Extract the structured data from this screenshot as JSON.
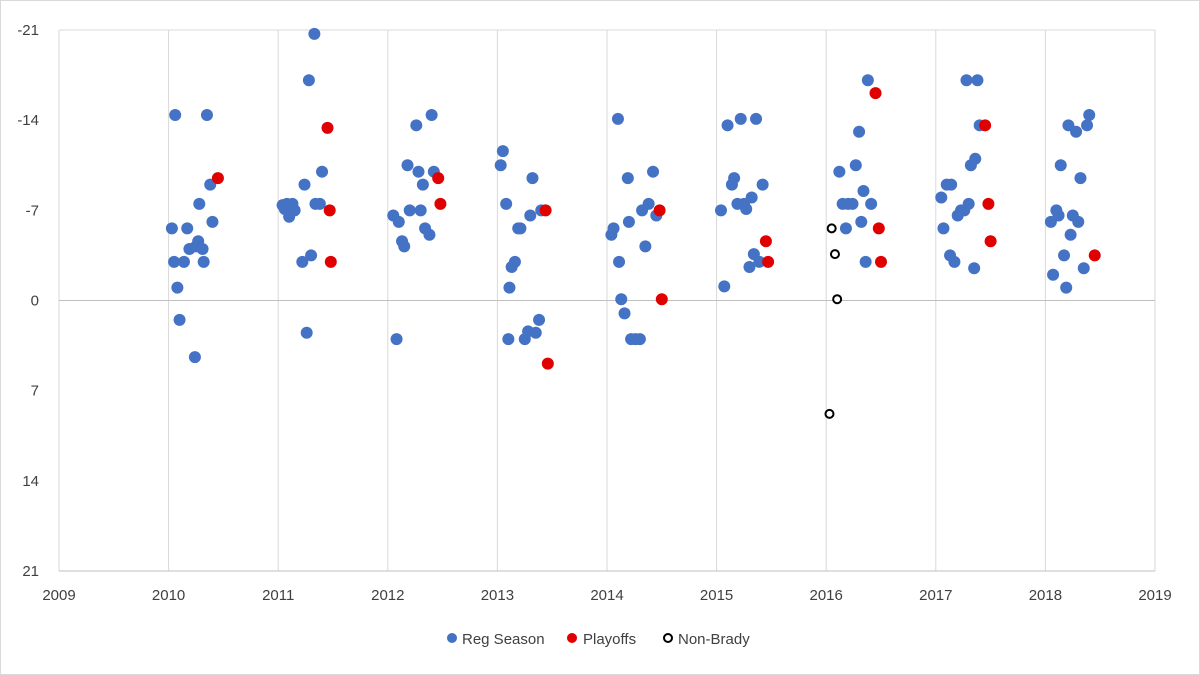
{
  "chart_data": {
    "type": "scatter",
    "title": "",
    "xlabel": "",
    "ylabel": "",
    "xlim": [
      2009,
      2019
    ],
    "ylim": [
      -21,
      21
    ],
    "y_inverted": true,
    "x_ticks": [
      2009,
      2010,
      2011,
      2012,
      2013,
      2014,
      2015,
      2016,
      2017,
      2018,
      2019
    ],
    "y_ticks": [
      -21,
      -14,
      -7,
      0,
      7,
      14,
      21
    ],
    "grid": "vertical lines at x ticks, horizontal line at y=0",
    "legend_position": "bottom",
    "series": [
      {
        "name": "Reg Season",
        "color": "#4472C4",
        "marker": "filled-circle",
        "points": [
          [
            2010.03,
            -5.6
          ],
          [
            2010.05,
            -3
          ],
          [
            2010.06,
            -14.4
          ],
          [
            2010.08,
            -1
          ],
          [
            2010.1,
            1.5
          ],
          [
            2010.14,
            -3
          ],
          [
            2010.17,
            -5.6
          ],
          [
            2010.19,
            -4
          ],
          [
            2010.24,
            4.4
          ],
          [
            2010.25,
            -4.2
          ],
          [
            2010.27,
            -4.6
          ],
          [
            2010.28,
            -7.5
          ],
          [
            2010.31,
            -4
          ],
          [
            2010.32,
            -3
          ],
          [
            2010.35,
            -14.4
          ],
          [
            2010.38,
            -9
          ],
          [
            2010.4,
            -6.1
          ],
          [
            2011.04,
            -7.4
          ],
          [
            2011.06,
            -7.1
          ],
          [
            2011.08,
            -7.5
          ],
          [
            2011.1,
            -6.5
          ],
          [
            2011.12,
            -7.3
          ],
          [
            2011.13,
            -7.5
          ],
          [
            2011.15,
            -7
          ],
          [
            2011.22,
            -3
          ],
          [
            2011.24,
            -9
          ],
          [
            2011.26,
            2.5
          ],
          [
            2011.28,
            -17.1
          ],
          [
            2011.3,
            -3.5
          ],
          [
            2011.33,
            -20.7
          ],
          [
            2011.34,
            -7.5
          ],
          [
            2011.38,
            -7.5
          ],
          [
            2011.4,
            -10
          ],
          [
            2012.05,
            -6.6
          ],
          [
            2012.08,
            3
          ],
          [
            2012.1,
            -6.1
          ],
          [
            2012.13,
            -4.6
          ],
          [
            2012.15,
            -4.2
          ],
          [
            2012.18,
            -10.5
          ],
          [
            2012.2,
            -7
          ],
          [
            2012.26,
            -13.6
          ],
          [
            2012.28,
            -10
          ],
          [
            2012.3,
            -7
          ],
          [
            2012.32,
            -9
          ],
          [
            2012.34,
            -5.6
          ],
          [
            2012.38,
            -5.1
          ],
          [
            2012.4,
            -14.4
          ],
          [
            2012.42,
            -10
          ],
          [
            2013.03,
            -10.5
          ],
          [
            2013.05,
            -11.6
          ],
          [
            2013.08,
            -7.5
          ],
          [
            2013.1,
            3
          ],
          [
            2013.11,
            -1
          ],
          [
            2013.13,
            -2.6
          ],
          [
            2013.16,
            -3
          ],
          [
            2013.19,
            -5.6
          ],
          [
            2013.21,
            -5.6
          ],
          [
            2013.25,
            3
          ],
          [
            2013.28,
            2.4
          ],
          [
            2013.3,
            -6.6
          ],
          [
            2013.32,
            -9.5
          ],
          [
            2013.35,
            2.5
          ],
          [
            2013.38,
            1.5
          ],
          [
            2013.4,
            -7
          ],
          [
            2014.04,
            -5.1
          ],
          [
            2014.06,
            -5.6
          ],
          [
            2014.1,
            -14.1
          ],
          [
            2014.11,
            -3
          ],
          [
            2014.13,
            -0.1
          ],
          [
            2014.16,
            1
          ],
          [
            2014.19,
            -9.5
          ],
          [
            2014.2,
            -6.1
          ],
          [
            2014.22,
            3
          ],
          [
            2014.26,
            3
          ],
          [
            2014.3,
            3
          ],
          [
            2014.32,
            -7
          ],
          [
            2014.35,
            -4.2
          ],
          [
            2014.38,
            -7.5
          ],
          [
            2014.42,
            -10
          ],
          [
            2014.45,
            -6.6
          ],
          [
            2015.04,
            -7
          ],
          [
            2015.07,
            -1.1
          ],
          [
            2015.1,
            -13.6
          ],
          [
            2015.14,
            -9
          ],
          [
            2015.16,
            -9.5
          ],
          [
            2015.19,
            -7.5
          ],
          [
            2015.22,
            -14.1
          ],
          [
            2015.25,
            -7.5
          ],
          [
            2015.27,
            -7.1
          ],
          [
            2015.3,
            -2.6
          ],
          [
            2015.32,
            -8
          ],
          [
            2015.34,
            -3.6
          ],
          [
            2015.36,
            -14.1
          ],
          [
            2015.39,
            -3
          ],
          [
            2015.42,
            -9
          ]
        ]
      },
      {
        "name": "Playoffs",
        "color": "#E00000",
        "marker": "filled-circle",
        "points": [
          [
            2010.45,
            -9.5
          ],
          [
            2011.45,
            -13.4
          ],
          [
            2011.47,
            -7
          ],
          [
            2011.48,
            -3
          ],
          [
            2012.46,
            -9.5
          ],
          [
            2012.48,
            -7.5
          ],
          [
            2013.44,
            -7
          ],
          [
            2013.46,
            4.9
          ],
          [
            2014.48,
            -7
          ],
          [
            2014.5,
            -0.1
          ],
          [
            2015.45,
            -4.6
          ],
          [
            2015.47,
            -3
          ]
        ]
      },
      {
        "name": "Non-Brady",
        "color": "#000000",
        "marker": "open-circle",
        "points": [
          [
            2016.03,
            8.8
          ],
          [
            2016.05,
            -5.6
          ],
          [
            2016.08,
            -3.6
          ],
          [
            2016.1,
            -0.1
          ]
        ]
      }
    ],
    "extra_points": {
      "Reg Season": [
        [
          2016.12,
          -10
        ],
        [
          2016.15,
          -7.5
        ],
        [
          2016.18,
          -5.6
        ],
        [
          2016.2,
          -7.5
        ],
        [
          2016.24,
          -7.5
        ],
        [
          2016.27,
          -10.5
        ],
        [
          2016.3,
          -13.1
        ],
        [
          2016.32,
          -6.1
        ],
        [
          2016.34,
          -8.5
        ],
        [
          2016.36,
          -3
        ],
        [
          2016.38,
          -17.1
        ],
        [
          2016.41,
          -7.5
        ],
        [
          2017.05,
          -8
        ],
        [
          2017.07,
          -5.6
        ],
        [
          2017.1,
          -9
        ],
        [
          2017.13,
          -3.5
        ],
        [
          2017.14,
          -9
        ],
        [
          2017.17,
          -3
        ],
        [
          2017.2,
          -6.6
        ],
        [
          2017.23,
          -7
        ],
        [
          2017.26,
          -7
        ],
        [
          2017.28,
          -17.1
        ],
        [
          2017.3,
          -7.5
        ],
        [
          2017.32,
          -10.5
        ],
        [
          2017.35,
          -2.5
        ],
        [
          2017.36,
          -11
        ],
        [
          2017.38,
          -17.1
        ],
        [
          2017.4,
          -13.6
        ],
        [
          2018.05,
          -6.1
        ],
        [
          2018.07,
          -2
        ],
        [
          2018.1,
          -7
        ],
        [
          2018.12,
          -6.6
        ],
        [
          2018.14,
          -10.5
        ],
        [
          2018.17,
          -3.5
        ],
        [
          2018.19,
          -1
        ],
        [
          2018.21,
          -13.6
        ],
        [
          2018.23,
          -5.1
        ],
        [
          2018.25,
          -6.6
        ],
        [
          2018.28,
          -13.1
        ],
        [
          2018.3,
          -6.1
        ],
        [
          2018.32,
          -9.5
        ],
        [
          2018.35,
          -2.5
        ],
        [
          2018.38,
          -13.6
        ],
        [
          2018.4,
          -14.4
        ]
      ],
      "Playoffs": [
        [
          2016.45,
          -16.1
        ],
        [
          2016.48,
          -5.6
        ],
        [
          2016.5,
          -3
        ],
        [
          2017.45,
          -13.6
        ],
        [
          2017.48,
          -7.5
        ],
        [
          2017.5,
          -4.6
        ],
        [
          2018.45,
          -3.5
        ]
      ]
    }
  }
}
